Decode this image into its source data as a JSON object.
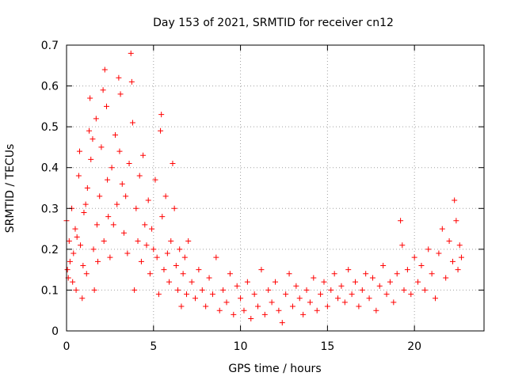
{
  "chart_data": {
    "type": "scatter",
    "title": "Day 153 of 2021, SRMTID for receiver cn12",
    "xlabel": "GPS time / hours",
    "ylabel": "SRMTID / TECUs",
    "xlim": [
      0,
      24
    ],
    "ylim": [
      0,
      0.7
    ],
    "xticks": [
      0,
      5,
      10,
      15,
      20
    ],
    "xtick_labels": [
      "0",
      "5",
      "10",
      "15",
      "20"
    ],
    "yticks": [
      0,
      0.1,
      0.2,
      0.3,
      0.4,
      0.5,
      0.6,
      0.7
    ],
    "ytick_labels": [
      "0",
      "0.1",
      "0.2",
      "0.3",
      "0.4",
      "0.5",
      "0.6",
      "0.7"
    ],
    "grid": true,
    "marker": "plus",
    "marker_color": "#ff0000",
    "series": [
      {
        "name": "SRMTID",
        "points": [
          [
            0.0,
            0.27
          ],
          [
            0.05,
            0.15
          ],
          [
            0.1,
            0.13
          ],
          [
            0.15,
            0.22
          ],
          [
            0.2,
            0.17
          ],
          [
            0.3,
            0.3
          ],
          [
            0.35,
            0.12
          ],
          [
            0.4,
            0.19
          ],
          [
            0.5,
            0.25
          ],
          [
            0.55,
            0.1
          ],
          [
            0.6,
            0.23
          ],
          [
            0.7,
            0.38
          ],
          [
            0.75,
            0.44
          ],
          [
            0.8,
            0.21
          ],
          [
            0.9,
            0.08
          ],
          [
            0.95,
            0.16
          ],
          [
            1.0,
            0.29
          ],
          [
            1.1,
            0.31
          ],
          [
            1.15,
            0.14
          ],
          [
            1.2,
            0.35
          ],
          [
            1.3,
            0.49
          ],
          [
            1.35,
            0.57
          ],
          [
            1.4,
            0.42
          ],
          [
            1.5,
            0.47
          ],
          [
            1.55,
            0.2
          ],
          [
            1.6,
            0.1
          ],
          [
            1.7,
            0.52
          ],
          [
            1.75,
            0.26
          ],
          [
            1.8,
            0.17
          ],
          [
            1.9,
            0.33
          ],
          [
            2.0,
            0.45
          ],
          [
            2.1,
            0.59
          ],
          [
            2.15,
            0.22
          ],
          [
            2.2,
            0.64
          ],
          [
            2.3,
            0.55
          ],
          [
            2.35,
            0.37
          ],
          [
            2.4,
            0.28
          ],
          [
            2.5,
            0.18
          ],
          [
            2.6,
            0.4
          ],
          [
            2.7,
            0.26
          ],
          [
            2.8,
            0.48
          ],
          [
            2.9,
            0.31
          ],
          [
            3.0,
            0.62
          ],
          [
            3.05,
            0.44
          ],
          [
            3.1,
            0.58
          ],
          [
            3.2,
            0.36
          ],
          [
            3.3,
            0.24
          ],
          [
            3.4,
            0.33
          ],
          [
            3.5,
            0.19
          ],
          [
            3.6,
            0.41
          ],
          [
            3.7,
            0.68
          ],
          [
            3.75,
            0.61
          ],
          [
            3.8,
            0.51
          ],
          [
            3.9,
            0.1
          ],
          [
            4.0,
            0.3
          ],
          [
            4.1,
            0.22
          ],
          [
            4.2,
            0.38
          ],
          [
            4.3,
            0.17
          ],
          [
            4.4,
            0.43
          ],
          [
            4.5,
            0.26
          ],
          [
            4.6,
            0.21
          ],
          [
            4.7,
            0.32
          ],
          [
            4.8,
            0.14
          ],
          [
            4.9,
            0.25
          ],
          [
            5.0,
            0.2
          ],
          [
            5.1,
            0.37
          ],
          [
            5.2,
            0.18
          ],
          [
            5.3,
            0.09
          ],
          [
            5.4,
            0.49
          ],
          [
            5.45,
            0.53
          ],
          [
            5.5,
            0.28
          ],
          [
            5.6,
            0.15
          ],
          [
            5.7,
            0.33
          ],
          [
            5.8,
            0.19
          ],
          [
            5.9,
            0.12
          ],
          [
            6.0,
            0.22
          ],
          [
            6.1,
            0.41
          ],
          [
            6.2,
            0.3
          ],
          [
            6.3,
            0.16
          ],
          [
            6.4,
            0.1
          ],
          [
            6.5,
            0.2
          ],
          [
            6.6,
            0.06
          ],
          [
            6.7,
            0.14
          ],
          [
            6.8,
            0.18
          ],
          [
            6.9,
            0.09
          ],
          [
            7.0,
            0.22
          ],
          [
            7.2,
            0.12
          ],
          [
            7.4,
            0.08
          ],
          [
            7.6,
            0.15
          ],
          [
            7.8,
            0.1
          ],
          [
            8.0,
            0.06
          ],
          [
            8.2,
            0.13
          ],
          [
            8.4,
            0.09
          ],
          [
            8.6,
            0.18
          ],
          [
            8.8,
            0.05
          ],
          [
            9.0,
            0.1
          ],
          [
            9.2,
            0.07
          ],
          [
            9.4,
            0.14
          ],
          [
            9.6,
            0.04
          ],
          [
            9.8,
            0.11
          ],
          [
            10.0,
            0.08
          ],
          [
            10.2,
            0.05
          ],
          [
            10.4,
            0.12
          ],
          [
            10.6,
            0.03
          ],
          [
            10.8,
            0.09
          ],
          [
            11.0,
            0.06
          ],
          [
            11.2,
            0.15
          ],
          [
            11.4,
            0.04
          ],
          [
            11.6,
            0.1
          ],
          [
            11.8,
            0.07
          ],
          [
            12.0,
            0.12
          ],
          [
            12.2,
            0.05
          ],
          [
            12.4,
            0.02
          ],
          [
            12.6,
            0.09
          ],
          [
            12.8,
            0.14
          ],
          [
            13.0,
            0.06
          ],
          [
            13.2,
            0.11
          ],
          [
            13.4,
            0.08
          ],
          [
            13.6,
            0.04
          ],
          [
            13.8,
            0.1
          ],
          [
            14.0,
            0.07
          ],
          [
            14.2,
            0.13
          ],
          [
            14.4,
            0.05
          ],
          [
            14.6,
            0.09
          ],
          [
            14.8,
            0.12
          ],
          [
            15.0,
            0.06
          ],
          [
            15.2,
            0.1
          ],
          [
            15.4,
            0.14
          ],
          [
            15.6,
            0.08
          ],
          [
            15.8,
            0.11
          ],
          [
            16.0,
            0.07
          ],
          [
            16.2,
            0.15
          ],
          [
            16.4,
            0.09
          ],
          [
            16.6,
            0.12
          ],
          [
            16.8,
            0.06
          ],
          [
            17.0,
            0.1
          ],
          [
            17.2,
            0.14
          ],
          [
            17.4,
            0.08
          ],
          [
            17.6,
            0.13
          ],
          [
            17.8,
            0.05
          ],
          [
            18.0,
            0.11
          ],
          [
            18.2,
            0.16
          ],
          [
            18.4,
            0.09
          ],
          [
            18.6,
            0.12
          ],
          [
            18.8,
            0.07
          ],
          [
            19.0,
            0.14
          ],
          [
            19.2,
            0.27
          ],
          [
            19.3,
            0.21
          ],
          [
            19.4,
            0.1
          ],
          [
            19.6,
            0.15
          ],
          [
            19.8,
            0.09
          ],
          [
            20.0,
            0.18
          ],
          [
            20.2,
            0.12
          ],
          [
            20.4,
            0.16
          ],
          [
            20.6,
            0.1
          ],
          [
            20.8,
            0.2
          ],
          [
            21.0,
            0.14
          ],
          [
            21.2,
            0.08
          ],
          [
            21.4,
            0.19
          ],
          [
            21.6,
            0.25
          ],
          [
            21.8,
            0.13
          ],
          [
            22.0,
            0.22
          ],
          [
            22.2,
            0.17
          ],
          [
            22.3,
            0.32
          ],
          [
            22.4,
            0.27
          ],
          [
            22.5,
            0.15
          ],
          [
            22.6,
            0.21
          ],
          [
            22.7,
            0.18
          ]
        ]
      }
    ]
  }
}
